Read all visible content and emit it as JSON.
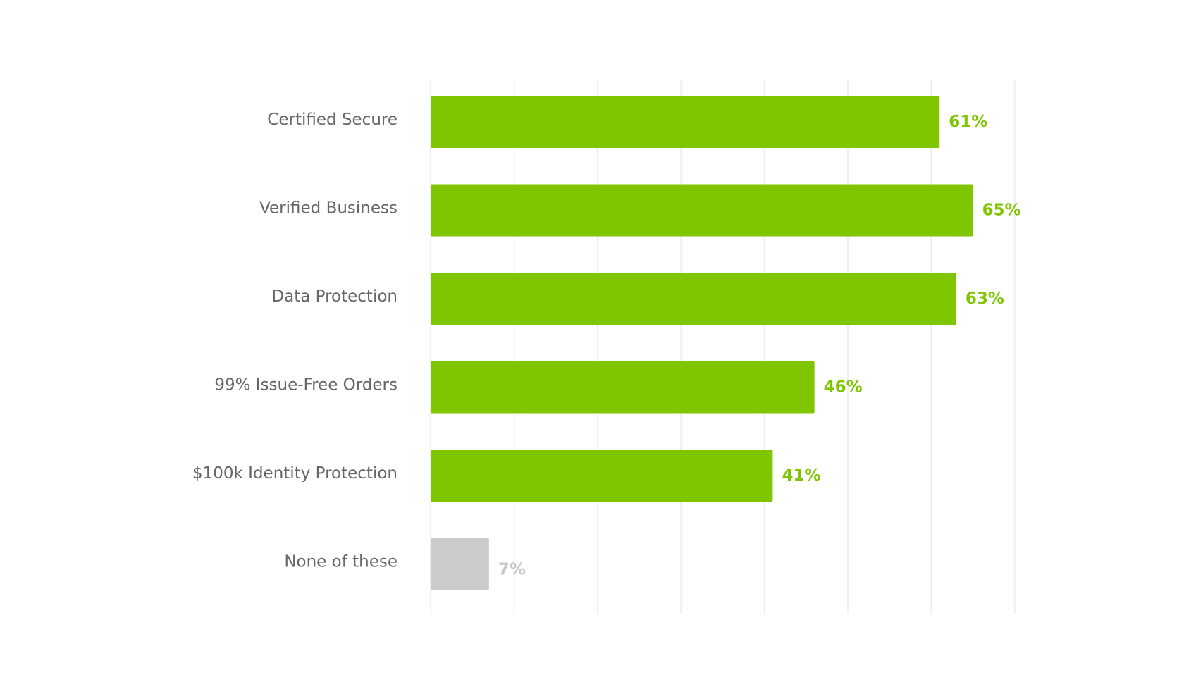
{
  "chart_data": {
    "type": "bar",
    "orientation": "horizontal",
    "title": "",
    "xlabel": "",
    "ylabel": "",
    "categories": [
      "Certified Secure",
      "Verified Business",
      "Data Protection",
      "99% Issue-Free Orders",
      "$100k Identity Protection",
      "None of these"
    ],
    "values": [
      61,
      65,
      63,
      46,
      41,
      7
    ],
    "value_labels": [
      "61%",
      "65%",
      "63%",
      "46%",
      "41%",
      "7%"
    ],
    "xlim": [
      0,
      70
    ],
    "grid_step": 10,
    "grid": true,
    "legend": "none",
    "colors": {
      "highlight": "#7fc600",
      "muted": "#cccccc",
      "muted_label": "#c8c8c8",
      "gridline": "#ebebeb",
      "category_text": "#666666"
    },
    "muted_categories": [
      "None of these"
    ]
  }
}
